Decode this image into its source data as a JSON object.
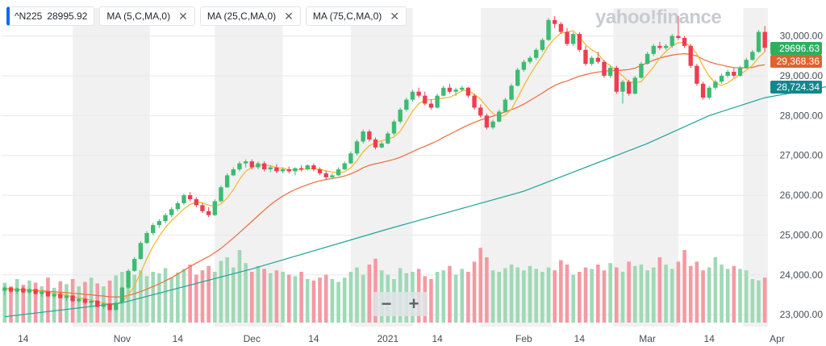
{
  "chips": [
    {
      "label": "^N225",
      "value": "28995.92"
    },
    {
      "label": "MA (5,C,MA,0)"
    },
    {
      "label": "MA (25,C,MA,0)"
    },
    {
      "label": "MA (75,C,MA,0)"
    }
  ],
  "logo_text": "yahoo!finance",
  "zoom": {
    "minus": "−",
    "plus": "+"
  },
  "price_tags": [
    {
      "text": "29696.63",
      "value": 29696.63,
      "color": "#2eae5f"
    },
    {
      "text": "29,368.36",
      "value": 29368.36,
      "color": "#e0622e"
    },
    {
      "text": "28,724.34",
      "value": 28724.34,
      "color": "#14878d"
    }
  ],
  "colors": {
    "up": "#3dbb72",
    "down": "#f03c4f",
    "ma5": "#f5b529",
    "ma25": "#ec6b3c",
    "ma75": "#1ea39c",
    "vol_up": "#9fd9b6",
    "vol_down": "#f49aa3",
    "band": "#f1f1f1"
  },
  "chart_data": {
    "type": "candlestick",
    "title": "^N225",
    "ylim": [
      22700,
      30700
    ],
    "y_ticks": [
      "23,000.00",
      "24,000.00",
      "25,000.00",
      "26,000.00",
      "27,000.00",
      "28,000.00",
      "29,000.00",
      "30,000.00"
    ],
    "y_tick_values": [
      23000,
      24000,
      25000,
      26000,
      27000,
      28000,
      29000,
      30000
    ],
    "x_tick_labels": [
      {
        "label": "14",
        "index": 3
      },
      {
        "label": "Nov",
        "index": 19
      },
      {
        "label": "14",
        "index": 28
      },
      {
        "label": "Dec",
        "index": 40
      },
      {
        "label": "14",
        "index": 50
      },
      {
        "label": "2021",
        "index": 62
      },
      {
        "label": "14",
        "index": 70
      },
      {
        "label": "Feb",
        "index": 84
      },
      {
        "label": "14",
        "index": 93
      },
      {
        "label": "Mar",
        "index": 104
      },
      {
        "label": "14",
        "index": 114
      },
      {
        "label": "Apr",
        "index": 125
      }
    ],
    "candles": [
      [
        23600,
        23720,
        23500,
        23680
      ],
      [
        23680,
        23690,
        23540,
        23580
      ],
      [
        23580,
        23680,
        23520,
        23660
      ],
      [
        23660,
        23700,
        23540,
        23560
      ],
      [
        23560,
        23660,
        23520,
        23640
      ],
      [
        23640,
        23650,
        23500,
        23520
      ],
      [
        23520,
        23600,
        23450,
        23580
      ],
      [
        23580,
        23600,
        23440,
        23460
      ],
      [
        23460,
        23540,
        23420,
        23520
      ],
      [
        23520,
        23560,
        23400,
        23420
      ],
      [
        23420,
        23500,
        23350,
        23480
      ],
      [
        23480,
        23490,
        23320,
        23340
      ],
      [
        23340,
        23420,
        23300,
        23400
      ],
      [
        23400,
        23420,
        23260,
        23300
      ],
      [
        23300,
        23380,
        23200,
        23350
      ],
      [
        23350,
        23360,
        23180,
        23200
      ],
      [
        23200,
        23300,
        23150,
        23280
      ],
      [
        23280,
        23290,
        23100,
        23120
      ],
      [
        23120,
        23320,
        23100,
        23300
      ],
      [
        23300,
        23700,
        23280,
        23680
      ],
      [
        23680,
        24150,
        23650,
        24100
      ],
      [
        24100,
        24450,
        24080,
        24400
      ],
      [
        24400,
        24850,
        24380,
        24800
      ],
      [
        24800,
        25100,
        24780,
        25050
      ],
      [
        25050,
        25300,
        25000,
        25250
      ],
      [
        25250,
        25400,
        25180,
        25350
      ],
      [
        25350,
        25550,
        25300,
        25500
      ],
      [
        25500,
        25700,
        25450,
        25650
      ],
      [
        25650,
        25850,
        25600,
        25800
      ],
      [
        25800,
        26050,
        25750,
        26000
      ],
      [
        26000,
        26080,
        25850,
        25900
      ],
      [
        25900,
        25950,
        25700,
        25750
      ],
      [
        25750,
        25800,
        25550,
        25600
      ],
      [
        25600,
        25700,
        25450,
        25500
      ],
      [
        25500,
        25900,
        25480,
        25850
      ],
      [
        25850,
        26250,
        25820,
        26200
      ],
      [
        26200,
        26550,
        26180,
        26500
      ],
      [
        26500,
        26700,
        26480,
        26650
      ],
      [
        26650,
        26850,
        26600,
        26800
      ],
      [
        26800,
        26900,
        26700,
        26850
      ],
      [
        26850,
        26900,
        26650,
        26700
      ],
      [
        26700,
        26850,
        26650,
        26800
      ],
      [
        26800,
        26850,
        26600,
        26650
      ],
      [
        26650,
        26750,
        26580,
        26700
      ],
      [
        26700,
        26780,
        26550,
        26600
      ],
      [
        26600,
        26700,
        26550,
        26650
      ],
      [
        26650,
        26720,
        26550,
        26600
      ],
      [
        26600,
        26700,
        26500,
        26680
      ],
      [
        26680,
        26750,
        26600,
        26650
      ],
      [
        26650,
        26780,
        26620,
        26750
      ],
      [
        26750,
        26800,
        26600,
        26650
      ],
      [
        26650,
        26700,
        26500,
        26550
      ],
      [
        26550,
        26620,
        26380,
        26450
      ],
      [
        26450,
        26550,
        26400,
        26500
      ],
      [
        26500,
        26700,
        26480,
        26650
      ],
      [
        26650,
        26850,
        26630,
        26800
      ],
      [
        26800,
        27100,
        26780,
        27050
      ],
      [
        27050,
        27400,
        27000,
        27350
      ],
      [
        27350,
        27650,
        27300,
        27600
      ],
      [
        27600,
        27650,
        27350,
        27400
      ],
      [
        27400,
        27450,
        27150,
        27200
      ],
      [
        27200,
        27350,
        27180,
        27300
      ],
      [
        27300,
        27600,
        27280,
        27550
      ],
      [
        27550,
        27900,
        27500,
        27850
      ],
      [
        27850,
        28200,
        27800,
        28150
      ],
      [
        28150,
        28450,
        28100,
        28400
      ],
      [
        28400,
        28650,
        28350,
        28600
      ],
      [
        28600,
        28700,
        28450,
        28500
      ],
      [
        28500,
        28600,
        28250,
        28300
      ],
      [
        28300,
        28400,
        28150,
        28200
      ],
      [
        28200,
        28550,
        28180,
        28500
      ],
      [
        28500,
        28750,
        28480,
        28700
      ],
      [
        28700,
        28800,
        28550,
        28600
      ],
      [
        28600,
        28700,
        28500,
        28650
      ],
      [
        28650,
        28750,
        28600,
        28700
      ],
      [
        28700,
        28720,
        28450,
        28500
      ],
      [
        28500,
        28550,
        28150,
        28200
      ],
      [
        28200,
        28280,
        27950,
        28000
      ],
      [
        28000,
        28050,
        27650,
        27700
      ],
      [
        27700,
        27900,
        27650,
        27850
      ],
      [
        27850,
        28150,
        27830,
        28100
      ],
      [
        28100,
        28450,
        28080,
        28400
      ],
      [
        28400,
        28800,
        28380,
        28750
      ],
      [
        28750,
        29200,
        28730,
        29150
      ],
      [
        29150,
        29400,
        29100,
        29350
      ],
      [
        29350,
        29500,
        29300,
        29450
      ],
      [
        29450,
        29700,
        29400,
        29650
      ],
      [
        29650,
        29950,
        29600,
        29900
      ],
      [
        29900,
        30450,
        29880,
        30400
      ],
      [
        30400,
        30500,
        30200,
        30300
      ],
      [
        30300,
        30350,
        30050,
        30100
      ],
      [
        30100,
        30200,
        29750,
        29800
      ],
      [
        29800,
        30100,
        29750,
        30050
      ],
      [
        30050,
        30100,
        29600,
        29650
      ],
      [
        29650,
        29750,
        29250,
        29300
      ],
      [
        29300,
        29500,
        29250,
        29450
      ],
      [
        29450,
        29600,
        29300,
        29350
      ],
      [
        29350,
        29400,
        28950,
        29000
      ],
      [
        29000,
        29250,
        28950,
        29200
      ],
      [
        29200,
        29250,
        28550,
        28600
      ],
      [
        28600,
        28900,
        28300,
        28850
      ],
      [
        28850,
        28900,
        28500,
        28550
      ],
      [
        28550,
        29000,
        28530,
        28950
      ],
      [
        28950,
        29350,
        28930,
        29300
      ],
      [
        29300,
        29600,
        29280,
        29550
      ],
      [
        29550,
        29800,
        29500,
        29750
      ],
      [
        29750,
        29850,
        29650,
        29700
      ],
      [
        29700,
        29800,
        29650,
        29750
      ],
      [
        29750,
        30050,
        29700,
        30000
      ],
      [
        30000,
        30500,
        29900,
        29950
      ],
      [
        29950,
        30000,
        29700,
        29750
      ],
      [
        29750,
        29800,
        29200,
        29250
      ],
      [
        29250,
        29300,
        28750,
        28800
      ],
      [
        28800,
        28850,
        28400,
        28450
      ],
      [
        28450,
        28750,
        28400,
        28700
      ],
      [
        28700,
        28900,
        28650,
        28850
      ],
      [
        28850,
        29050,
        28800,
        29000
      ],
      [
        29000,
        29150,
        28950,
        29100
      ],
      [
        29100,
        29200,
        28950,
        29000
      ],
      [
        29000,
        29250,
        28980,
        29200
      ],
      [
        29200,
        29450,
        29180,
        29400
      ],
      [
        29400,
        29650,
        29380,
        29600
      ],
      [
        29600,
        30150,
        29580,
        30100
      ],
      [
        30100,
        30250,
        29600,
        29700
      ]
    ],
    "volume_relative": [
      0.55,
      0.5,
      0.6,
      0.52,
      0.58,
      0.55,
      0.5,
      0.62,
      0.48,
      0.57,
      0.53,
      0.6,
      0.5,
      0.56,
      0.62,
      0.54,
      0.5,
      0.58,
      0.65,
      0.7,
      0.6,
      0.66,
      0.72,
      0.64,
      0.7,
      0.68,
      0.75,
      0.62,
      0.69,
      0.74,
      0.8,
      0.66,
      0.72,
      0.78,
      0.7,
      0.85,
      0.9,
      0.76,
      1.0,
      0.82,
      0.7,
      0.78,
      0.74,
      0.68,
      0.72,
      0.7,
      0.66,
      0.64,
      0.7,
      0.6,
      0.58,
      0.62,
      0.66,
      0.6,
      0.56,
      0.62,
      0.7,
      0.76,
      0.66,
      0.8,
      0.88,
      0.72,
      0.66,
      0.6,
      0.75,
      0.68,
      0.7,
      0.74,
      0.64,
      0.6,
      0.7,
      0.72,
      0.78,
      0.66,
      0.74,
      0.7,
      0.84,
      1.03,
      0.9,
      0.72,
      0.7,
      0.75,
      0.8,
      0.76,
      0.72,
      0.78,
      0.74,
      0.7,
      0.76,
      0.72,
      0.86,
      0.8,
      0.66,
      0.7,
      0.76,
      0.74,
      0.8,
      0.72,
      0.82,
      0.76,
      0.7,
      0.84,
      0.78,
      0.8,
      0.72,
      0.76,
      0.9,
      0.8,
      0.74,
      0.84,
      1.0,
      0.78,
      0.84,
      0.72,
      0.76,
      0.9,
      0.8,
      0.74,
      0.78,
      0.74,
      0.72,
      0.6,
      0.58,
      0.62
    ],
    "series": [
      {
        "name": "MA (5,C,MA,0)",
        "last": 29696.63
      },
      {
        "name": "MA (25,C,MA,0)",
        "last": 29368.36
      },
      {
        "name": "MA (75,C,MA,0)",
        "last": 28724.34
      }
    ],
    "ma75_points": [
      [
        0,
        22950
      ],
      [
        19,
        23300
      ],
      [
        40,
        24150
      ],
      [
        62,
        25150
      ],
      [
        84,
        26100
      ],
      [
        104,
        27300
      ],
      [
        114,
        28000
      ],
      [
        123,
        28450
      ],
      [
        133,
        28724.34
      ]
    ]
  }
}
